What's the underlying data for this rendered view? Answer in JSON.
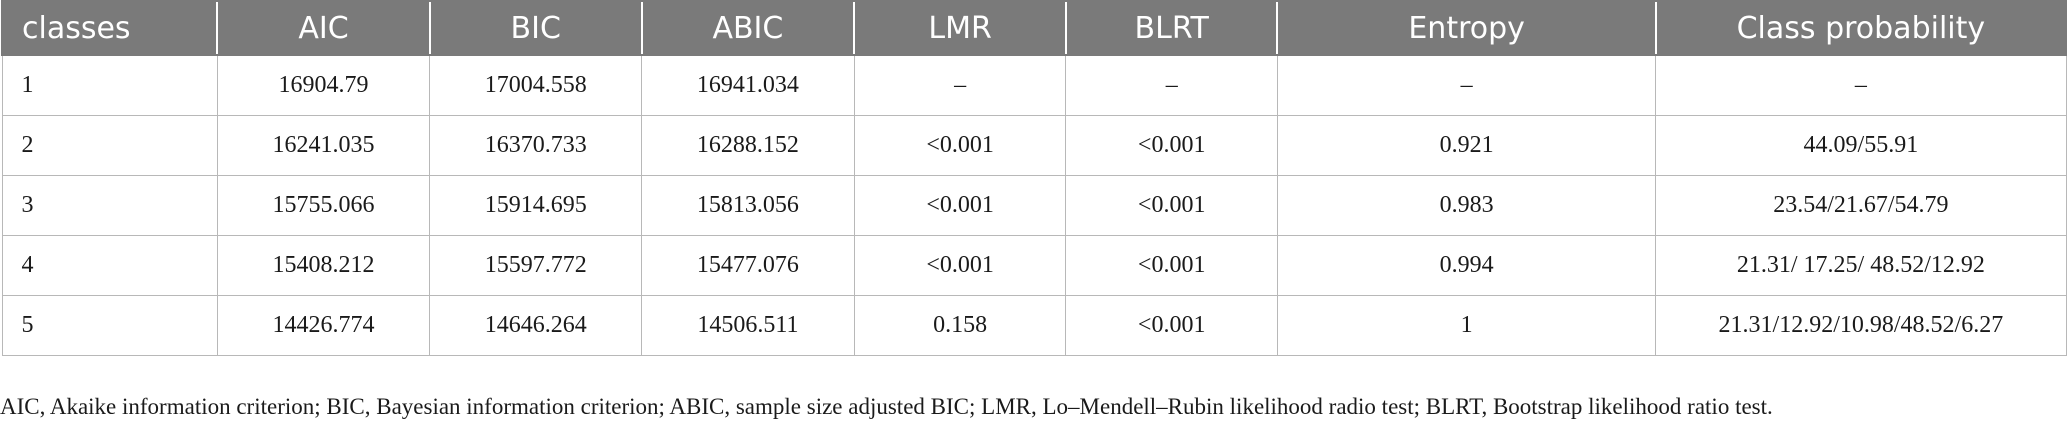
{
  "table": {
    "headers": [
      "classes",
      "AIC",
      "BIC",
      "ABIC",
      "LMR",
      "BLRT",
      "Entropy",
      "Class probability"
    ],
    "rows": [
      [
        "1",
        "16904.79",
        "17004.558",
        "16941.034",
        "–",
        "–",
        "–",
        "–"
      ],
      [
        "2",
        "16241.035",
        "16370.733",
        "16288.152",
        "<0.001",
        "<0.001",
        "0.921",
        "44.09/55.91"
      ],
      [
        "3",
        "15755.066",
        "15914.695",
        "15813.056",
        "<0.001",
        "<0.001",
        "0.983",
        "23.54/21.67/54.79"
      ],
      [
        "4",
        "15408.212",
        "15597.772",
        "15477.076",
        "<0.001",
        "<0.001",
        "0.994",
        "21.31/ 17.25/ 48.52/12.92"
      ],
      [
        "5",
        "14426.774",
        "14646.264",
        "14506.511",
        "0.158",
        "<0.001",
        "1",
        "21.31/12.92/10.98/48.52/6.27"
      ]
    ]
  },
  "footnote": "AIC, Akaike information criterion; BIC, Bayesian information criterion; ABIC, sample size adjusted BIC; LMR, Lo–Mendell–Rubin likelihood radio test; BLRT, Bootstrap likelihood ratio test.",
  "colors": {
    "header_bg": "#7a7a7a",
    "header_text": "#ffffff",
    "grid": "#b8b8b8"
  }
}
